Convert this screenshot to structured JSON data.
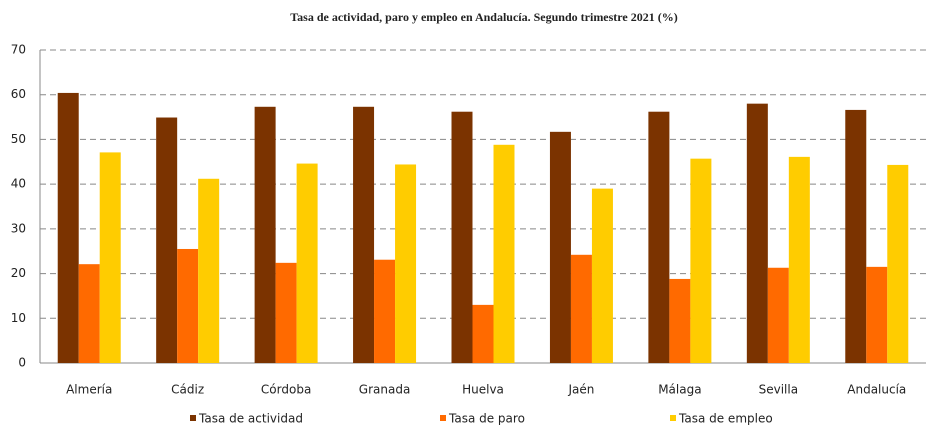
{
  "chart_data": {
    "type": "bar",
    "title": "Tasa de actividad, paro y empleo en Andalucía. Segundo trimestre 2021 (%)",
    "categories": [
      "Almería",
      "Cádiz",
      "Córdoba",
      "Granada",
      "Huelva",
      "Jaén",
      "Málaga",
      "Sevilla",
      "Andalucía"
    ],
    "series": [
      {
        "name": "Tasa de actividad",
        "color": "#7b3300",
        "values": [
          60.4,
          54.9,
          57.3,
          57.3,
          56.2,
          51.7,
          56.2,
          58.0,
          56.6
        ]
      },
      {
        "name": "Tasa de paro",
        "color": "#ff6a00",
        "values": [
          22.1,
          25.5,
          22.4,
          23.1,
          13.0,
          24.2,
          18.8,
          21.3,
          21.5
        ]
      },
      {
        "name": "Tasa de empleo",
        "color": "#ffcc00",
        "values": [
          47.1,
          41.2,
          44.6,
          44.4,
          48.8,
          39.0,
          45.7,
          46.1,
          44.3
        ]
      }
    ],
    "ylim": [
      0,
      70
    ],
    "yticks": [
      0,
      10,
      20,
      30,
      40,
      50,
      60,
      70
    ],
    "grid": true,
    "legend": "bottom"
  }
}
